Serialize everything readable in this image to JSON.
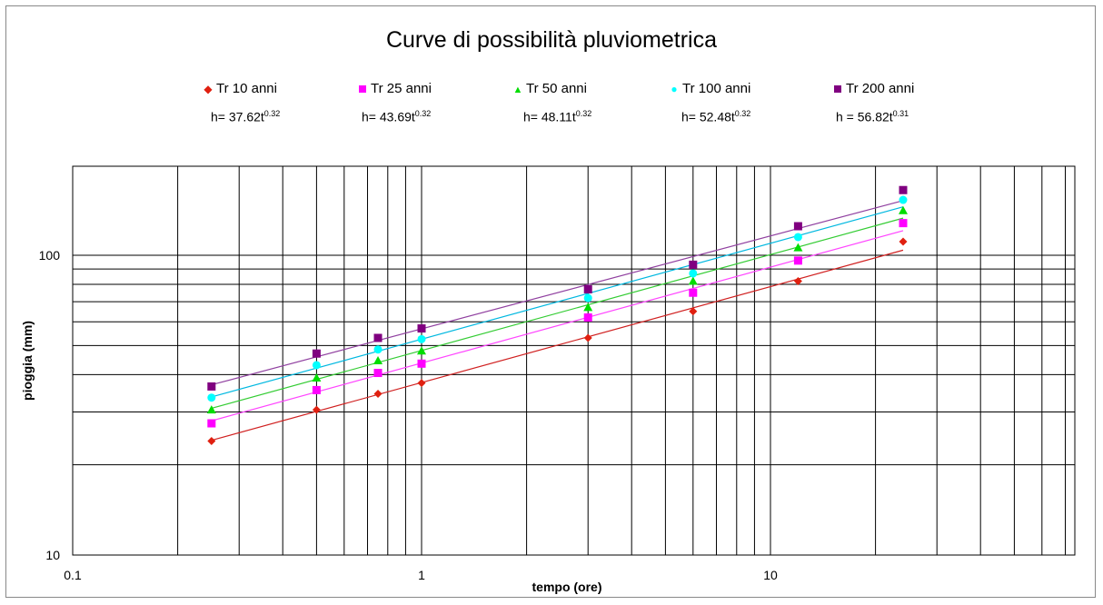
{
  "chart_data": {
    "type": "scatter",
    "title": "Curve di possibilità pluviometrica",
    "xlabel": "tempo (ore)",
    "ylabel": "pioggia (mm)",
    "xscale": "log",
    "yscale": "log",
    "xlim": [
      0.1,
      70
    ],
    "ylim": [
      10,
      200
    ],
    "x_tick_labels": [
      "0.1",
      "1",
      "10"
    ],
    "y_tick_labels": [
      "10",
      "100"
    ],
    "grid": true,
    "legend_position": "top",
    "trendline": "power",
    "series": [
      {
        "name": "Tr 10 anni",
        "marker": "diamond",
        "color": "#e02010",
        "line_color": "#d02020",
        "equation": "h= 37.62t",
        "exponent": "0.32",
        "a": 37.62,
        "b": 0.32,
        "x": [
          0.25,
          0.5,
          0.75,
          1,
          3,
          6,
          12,
          24
        ],
        "y": [
          24,
          30.5,
          34.5,
          37.5,
          53,
          65,
          82,
          111
        ]
      },
      {
        "name": "Tr 25 anni",
        "marker": "square",
        "color": "#ff00ff",
        "line_color": "#ff44ff",
        "equation": "h= 43.69t",
        "exponent": "0.32",
        "a": 43.69,
        "b": 0.32,
        "x": [
          0.25,
          0.5,
          0.75,
          1,
          3,
          6,
          12,
          24
        ],
        "y": [
          27.5,
          35.5,
          40.5,
          43.5,
          62,
          75,
          96,
          128
        ]
      },
      {
        "name": "Tr 50 anni",
        "marker": "triangle",
        "color": "#00dd00",
        "line_color": "#33cc33",
        "equation": "h= 48.11t",
        "exponent": "0.32",
        "a": 48.11,
        "b": 0.32,
        "x": [
          0.25,
          0.5,
          0.75,
          1,
          3,
          6,
          12,
          24
        ],
        "y": [
          30.5,
          39,
          44.5,
          48,
          67,
          82,
          106,
          141
        ]
      },
      {
        "name": "Tr 100 anni",
        "marker": "circle",
        "color": "#00ffff",
        "line_color": "#00b8e0",
        "equation": "h= 52.48t",
        "exponent": "0.32",
        "a": 52.48,
        "b": 0.32,
        "x": [
          0.25,
          0.5,
          0.75,
          1,
          3,
          6,
          12,
          24
        ],
        "y": [
          33.5,
          43,
          48.5,
          52.5,
          72,
          87,
          115,
          153
        ]
      },
      {
        "name": "Tr 200 anni",
        "marker": "square",
        "color": "#800080",
        "line_color": "#9040a0",
        "equation": "h = 56.82t",
        "exponent": "0.31",
        "a": 56.82,
        "b": 0.31,
        "x": [
          0.25,
          0.5,
          0.75,
          1,
          3,
          6,
          12,
          24
        ],
        "y": [
          36.5,
          47,
          53,
          57,
          77,
          93,
          125,
          165
        ]
      }
    ]
  }
}
